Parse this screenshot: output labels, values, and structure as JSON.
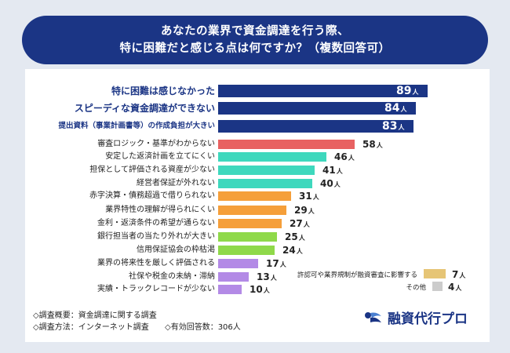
{
  "title_line1": "あなたの業界で資金調達を行う際、",
  "title_line2": "特に困難だと感じる点は何ですか？（複数回答可）",
  "unit": "人",
  "chart_data": {
    "type": "bar",
    "orientation": "horizontal",
    "title": "あなたの業界で資金調達を行う際、特に困難だと感じる点は何ですか？（複数回答可）",
    "categories": [
      "特に困難は感じなかった",
      "スピーディな資金調達ができない",
      "提出資料（事業計画書等）の作成負担が大きい",
      "審査ロジック・基準がわからない",
      "安定した返済計画を立てにくい",
      "担保として評価される資産が少ない",
      "経営者保証が外れない",
      "赤字決算・債務超過で借りられない",
      "業界特性の理解が得られにくい",
      "金利・返済条件の希望が通らない",
      "銀行担当者の当たり外れが大きい",
      "信用保証協会の枠枯渇",
      "業界の将来性を厳しく評価される",
      "社保や税金の未納・滞納",
      "実績・トラックレコードが少ない",
      "許認可や業界規制が融資審査に影響する",
      "その他"
    ],
    "values": [
      89,
      84,
      83,
      58,
      46,
      41,
      40,
      31,
      29,
      27,
      25,
      24,
      17,
      13,
      10,
      7,
      4
    ],
    "colors": [
      "#1b3585",
      "#1b3585",
      "#1b3585",
      "#e86262",
      "#3ed8bd",
      "#3ed8bd",
      "#3ed8bd",
      "#f59f3a",
      "#f59f3a",
      "#f59f3a",
      "#8fd94a",
      "#8fd94a",
      "#b38ae6",
      "#b38ae6",
      "#b38ae6",
      "#e6c576",
      "#cccccc"
    ],
    "unit": "人"
  },
  "footer": {
    "overview": "◇調査概要：資金調達に関する調査",
    "method": "◇調査方法：インターネット調査",
    "responses": "◇有効回答数：306人"
  },
  "logo": "融資代行プロ"
}
